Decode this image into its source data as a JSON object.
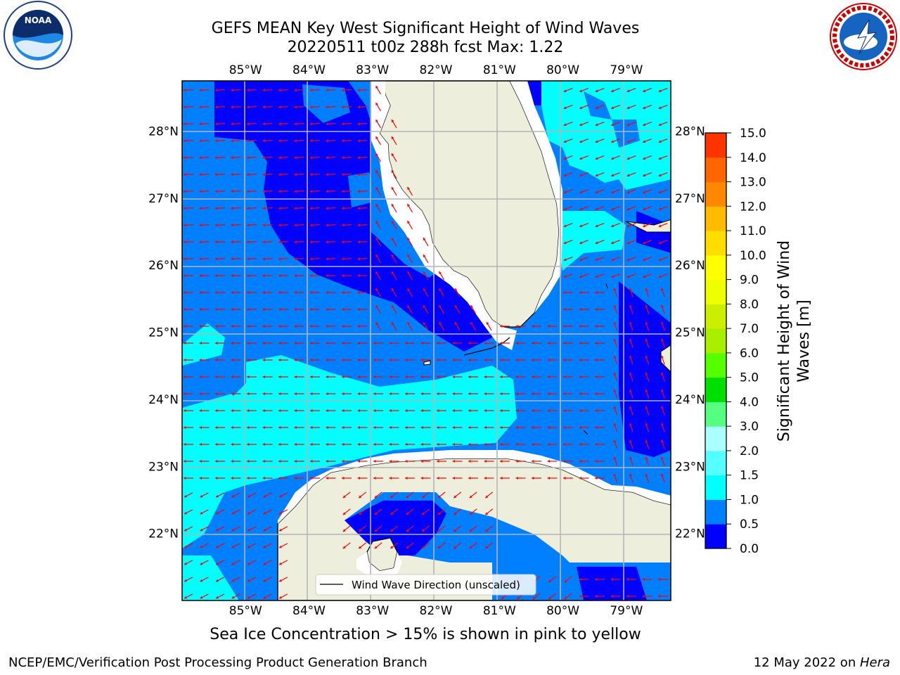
{
  "header": {
    "title_line1": "GEFS MEAN Key West Significant Height of Wind Waves",
    "title_line2": "20220511 t00z 288h fcst   Max: 1.22"
  },
  "logos": {
    "left": {
      "name": "noaa-logo",
      "text": "NOAA"
    },
    "right": {
      "name": "nws-logo",
      "text": "NATIONAL WEATHER SERVICE"
    }
  },
  "subtitle": "Sea Ice Concentration > 15% is shown in pink to yellow",
  "footer": {
    "left": "NCEP/EMC/Verification Post Processing Product Generation Branch",
    "right_date": "12 May 2022 on ",
    "right_host": "Hera"
  },
  "chart_data": {
    "type": "heatmap",
    "title": "GEFS MEAN Key West Significant Height of Wind Waves",
    "subtitle": "20220511 t00z 288h fcst   Max: 1.22",
    "xlim": [
      -86.0,
      -78.3
    ],
    "ylim": [
      21.0,
      28.75
    ],
    "x_ticks": [
      -85,
      -84,
      -83,
      -82,
      -81,
      -80,
      -79
    ],
    "x_tick_labels": [
      "85°W",
      "84°W",
      "83°W",
      "82°W",
      "81°W",
      "80°W",
      "79°W"
    ],
    "y_ticks": [
      22,
      23,
      24,
      25,
      26,
      27,
      28
    ],
    "y_tick_labels": [
      "22°N",
      "23°N",
      "24°N",
      "25°N",
      "26°N",
      "27°N",
      "28°N"
    ],
    "grid": true,
    "legend": {
      "label": "Wind Wave Direction (unscaled)",
      "placement": "bottom-center"
    },
    "colorbar": {
      "label": "Significant Height of Wind Waves [m]",
      "ticks": [
        "0.0",
        "0.5",
        "1.0",
        "1.5",
        "2.0",
        "3.0",
        "4.0",
        "5.0",
        "6.0",
        "7.0",
        "8.0",
        "9.0",
        "10.0",
        "11.0",
        "12.0",
        "13.0",
        "14.0",
        "15.0"
      ],
      "colors": [
        "#0000ff",
        "#0080ff",
        "#00ffff",
        "#55ffff",
        "#aaffff",
        "#55ff80",
        "#00e000",
        "#55ff00",
        "#aaee00",
        "#ccee00",
        "#eeff00",
        "#ffff00",
        "#ffdd00",
        "#ffbb00",
        "#ff8800",
        "#ff6600",
        "#ff3300"
      ]
    },
    "max_value": 1.22,
    "regions": [
      {
        "level": "0.0-0.5",
        "description": "central/eastern Gulf and western Florida shelf"
      },
      {
        "level": "0.5-1.0",
        "description": "most open water"
      },
      {
        "level": "1.0-1.5",
        "description": "Florida Straits band and Atlantic off Florida east coast"
      }
    ],
    "vector_field": {
      "name": "wind wave direction",
      "color": "#ff0000",
      "dominant_direction": "westward"
    }
  }
}
